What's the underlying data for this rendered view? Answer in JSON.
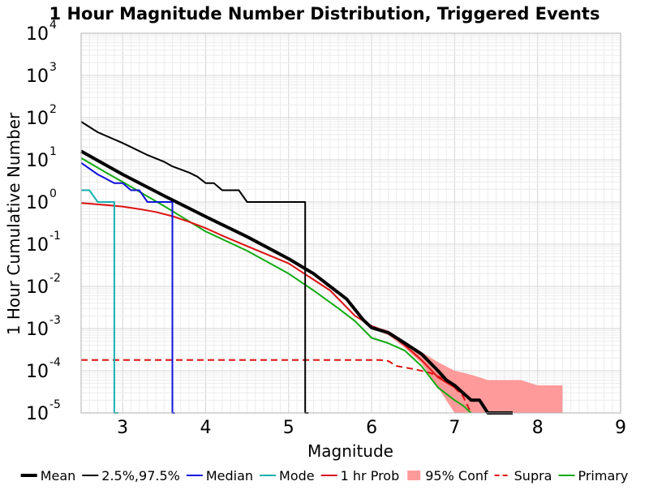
{
  "chart_data": {
    "type": "line",
    "title": "1 Hour Magnitude Number Distribution, Triggered Events",
    "xlabel": "Magnitude",
    "ylabel": "1 Hour Cumulative Number",
    "xlim": [
      2.5,
      9
    ],
    "ylim": [
      1e-05,
      10000
    ],
    "yscale": "log",
    "grid": true,
    "legend_position": "bottom",
    "x_ticks": [
      3,
      4,
      5,
      6,
      7,
      8,
      9
    ],
    "x_tick_labels": [
      "3",
      "4",
      "5",
      "6",
      "7",
      "8",
      "9"
    ],
    "y_ticks": [
      {
        "value": 1e-05,
        "base": "10",
        "exp": "-5"
      },
      {
        "value": 0.0001,
        "base": "10",
        "exp": "-4"
      },
      {
        "value": 0.001,
        "base": "10",
        "exp": "-3"
      },
      {
        "value": 0.01,
        "base": "10",
        "exp": "-2"
      },
      {
        "value": 0.1,
        "base": "10",
        "exp": "-1"
      },
      {
        "value": 1,
        "base": "10",
        "exp": "0"
      },
      {
        "value": 10,
        "base": "10",
        "exp": "1"
      },
      {
        "value": 100,
        "base": "10",
        "exp": "2"
      },
      {
        "value": 1000,
        "base": "10",
        "exp": "3"
      },
      {
        "value": 10000,
        "base": "10",
        "exp": "4"
      }
    ],
    "series": [
      {
        "name": "95% Conf",
        "kind": "band",
        "color": "#ff9a9a",
        "x": [
          6.0,
          6.2,
          6.4,
          6.6,
          6.8,
          7.0,
          7.1,
          7.2,
          7.3,
          7.4,
          7.6,
          7.8,
          8.0,
          8.3
        ],
        "lower": [
          0.001,
          0.0007,
          0.00035,
          0.00015,
          4e-05,
          1e-05,
          1e-05,
          1e-05,
          1e-05,
          1e-05,
          1e-05,
          1e-05,
          1e-05,
          1e-05
        ],
        "upper": [
          0.0012,
          0.0009,
          0.0005,
          0.00028,
          0.00016,
          0.0001,
          9e-05,
          8e-05,
          7e-05,
          6e-05,
          6e-05,
          6e-05,
          4.5e-05,
          4.5e-05
        ]
      },
      {
        "name": "Supra",
        "kind": "line",
        "color": "#dd1111",
        "dash": true,
        "width": 2,
        "x": [
          2.5,
          6.1,
          6.2,
          6.3,
          6.5,
          6.7,
          6.9,
          7.0,
          7.1,
          7.2
        ],
        "y": [
          0.00018,
          0.00018,
          0.00017,
          0.00013,
          0.00011,
          9e-05,
          6e-05,
          4e-05,
          2.5e-05,
          1e-05
        ]
      },
      {
        "name": "Primary",
        "kind": "line",
        "color": "#11aa11",
        "width": 2,
        "x": [
          2.5,
          2.8,
          3.0,
          3.5,
          4.0,
          4.5,
          5.0,
          5.3,
          5.6,
          5.8,
          6.0,
          6.2,
          6.4,
          6.6,
          6.8,
          7.0,
          7.1,
          7.2
        ],
        "y": [
          11,
          5,
          3,
          0.8,
          0.2,
          0.07,
          0.02,
          0.008,
          0.003,
          0.0015,
          0.0006,
          0.00045,
          0.0003,
          0.00013,
          4e-05,
          2e-05,
          1.5e-05,
          1e-05
        ]
      },
      {
        "name": "1 hr Prob",
        "kind": "line",
        "color": "#dd1111",
        "width": 2,
        "x": [
          2.5,
          2.8,
          3.0,
          3.2,
          3.4,
          3.6,
          3.8,
          4.0,
          4.2,
          4.5,
          5.0,
          5.5,
          5.8,
          6.0,
          6.2,
          6.4,
          6.6,
          6.8,
          7.0,
          7.2
        ],
        "y": [
          0.95,
          0.85,
          0.78,
          0.68,
          0.58,
          0.46,
          0.34,
          0.24,
          0.16,
          0.09,
          0.035,
          0.008,
          0.002,
          0.00115,
          0.0008,
          0.0004,
          0.00018,
          7e-05,
          4e-05,
          2e-05
        ]
      },
      {
        "name": "Mode",
        "kind": "line",
        "color": "#17b0b0",
        "width": 2,
        "x": [
          2.5,
          2.6,
          2.7,
          2.9,
          2.9,
          2.95
        ],
        "y": [
          1.9,
          1.9,
          1.0,
          1.0,
          1e-05,
          1e-05
        ]
      },
      {
        "name": "Median",
        "kind": "line",
        "color": "#1111dd",
        "width": 2,
        "x": [
          2.5,
          2.7,
          2.9,
          3.0,
          3.1,
          3.2,
          3.3,
          3.6,
          3.6,
          3.63
        ],
        "y": [
          8.5,
          4.5,
          2.8,
          2.8,
          1.9,
          1.9,
          1.0,
          1.0,
          1e-05,
          1e-05
        ]
      },
      {
        "name": "2.5%,97.5%",
        "kind": "line",
        "color": "#000000",
        "width": 2,
        "x": [
          2.5,
          2.7,
          3.0,
          3.3,
          3.5,
          3.6,
          3.8,
          3.9,
          4.0,
          4.1,
          4.2,
          4.3,
          4.4,
          4.5,
          5.0,
          5.2,
          5.2,
          5.24
        ],
        "y": [
          80,
          45,
          25,
          13,
          9,
          7,
          5,
          4,
          2.8,
          2.8,
          1.9,
          1.9,
          1.9,
          1.0,
          1.0,
          1.0,
          1e-05,
          1e-05
        ]
      },
      {
        "name": "Mean",
        "kind": "line",
        "color": "#000000",
        "width": 4,
        "x": [
          2.5,
          3.0,
          3.5,
          4.0,
          4.5,
          5.0,
          5.3,
          5.5,
          5.7,
          5.9,
          6.0,
          6.2,
          6.4,
          6.6,
          6.8,
          6.9,
          7.0,
          7.1,
          7.2,
          7.3,
          7.4,
          7.6,
          7.7
        ],
        "y": [
          16,
          4.5,
          1.4,
          0.45,
          0.15,
          0.045,
          0.02,
          0.01,
          0.005,
          0.0016,
          0.00105,
          0.0008,
          0.00045,
          0.00025,
          0.0001,
          6e-05,
          4.5e-05,
          3e-05,
          2e-05,
          2e-05,
          1e-05,
          1e-05,
          1e-05
        ]
      }
    ],
    "legend": [
      {
        "label": "Mean",
        "color": "#000000",
        "style": "thick"
      },
      {
        "label": "2.5%,97.5%",
        "color": "#000000",
        "style": "solid"
      },
      {
        "label": "Median",
        "color": "#1111dd",
        "style": "solid"
      },
      {
        "label": "Mode",
        "color": "#17b0b0",
        "style": "solid"
      },
      {
        "label": "1 hr Prob",
        "color": "#dd1111",
        "style": "solid"
      },
      {
        "label": "95% Conf",
        "color": "#ff9a9a",
        "style": "patch"
      },
      {
        "label": "Supra",
        "color": "#dd1111",
        "style": "dashed"
      },
      {
        "label": "Primary",
        "color": "#11aa11",
        "style": "solid"
      }
    ]
  }
}
